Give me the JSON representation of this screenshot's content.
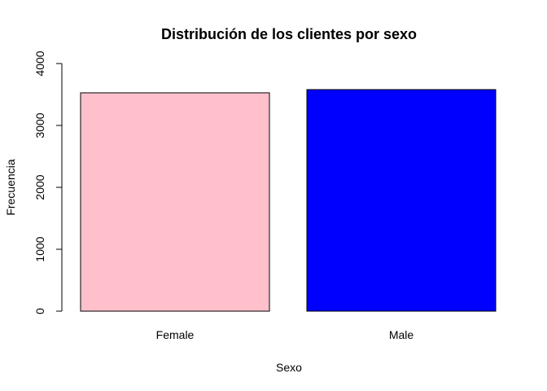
{
  "chart_data": {
    "type": "bar",
    "title": "Distribución de los clientes por sexo",
    "xlabel": "Sexo",
    "ylabel": "Frecuencia",
    "categories": [
      "Female",
      "Male"
    ],
    "values": [
      3527,
      3579
    ],
    "colors": [
      "#ffc0cb",
      "#0000ff"
    ],
    "ylim": [
      0,
      4000
    ],
    "yticks": [
      0,
      1000,
      2000,
      3000,
      4000
    ],
    "grid": false,
    "legend": "none"
  }
}
